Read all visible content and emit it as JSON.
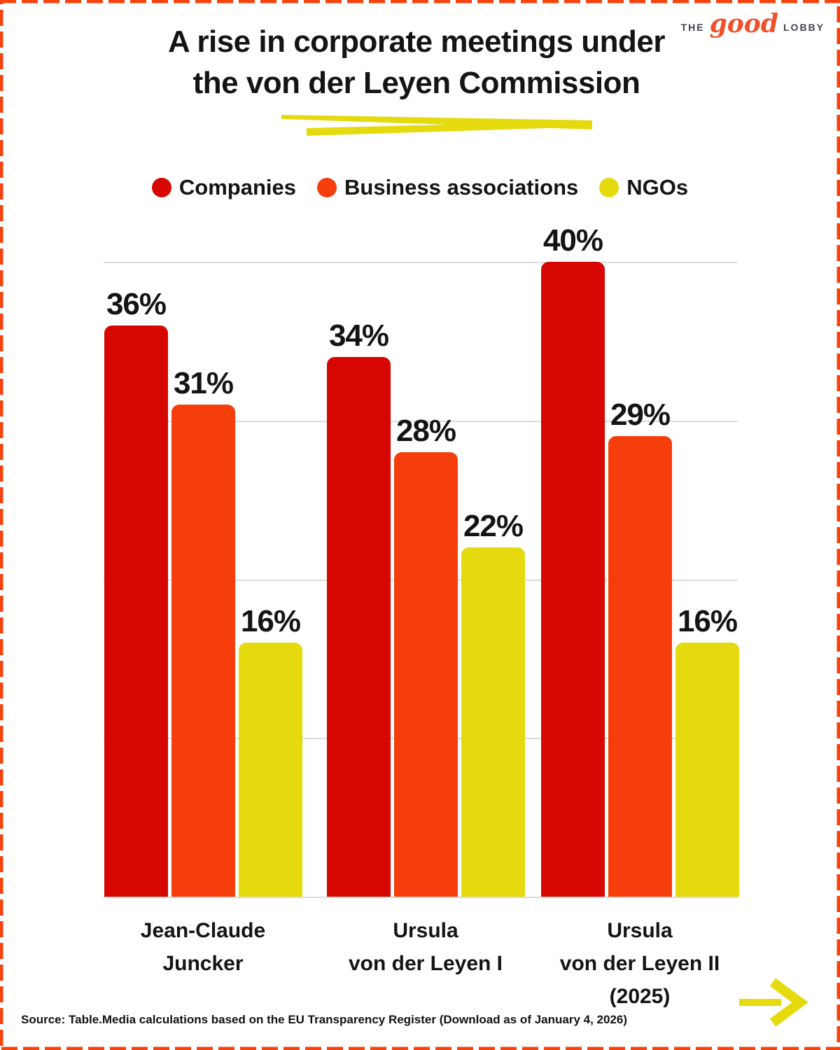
{
  "header": {
    "title_lines": [
      "A rise in corporate meetings under",
      "the von der Leyen Commission"
    ],
    "logo": {
      "prefix": "THE",
      "script": "good",
      "suffix": "LOBBY"
    }
  },
  "legend": {
    "items": [
      {
        "label": "Companies",
        "color": "#d60600"
      },
      {
        "label": "Business associations",
        "color": "#f63d0c"
      },
      {
        "label": "NGOs",
        "color": "#e4da0e"
      }
    ]
  },
  "chart_data": {
    "type": "bar",
    "title": "A rise in corporate meetings under the von der Leyen Commission",
    "categories": [
      "Jean-Claude\nJuncker",
      "Ursula\nvon der Leyen I",
      "Ursula\nvon der Leyen II\n(2025)"
    ],
    "series": [
      {
        "name": "Companies",
        "color": "#d60600",
        "values": [
          36,
          34,
          40
        ]
      },
      {
        "name": "Business associations",
        "color": "#f63d0c",
        "values": [
          31,
          28,
          29
        ]
      },
      {
        "name": "NGOs",
        "color": "#e4da0e",
        "values": [
          16,
          22,
          16
        ]
      }
    ],
    "unit": "%",
    "value_label_format": "{v}%",
    "ylim": [
      0,
      42
    ],
    "gridlines_pct": [
      0,
      10,
      20,
      30,
      40
    ],
    "grid": true,
    "legend_position": "top",
    "value_labels": true
  },
  "footer": {
    "source": "Source: Table.Media calculations based on the EU Transparency Register (Download as of January 4, 2026)"
  },
  "decorations": {
    "highlight_color": "#e4da0e",
    "border_color": "#f5430d",
    "grid_color": "#dcdcdc",
    "arrow_icon": "right-arrow"
  }
}
